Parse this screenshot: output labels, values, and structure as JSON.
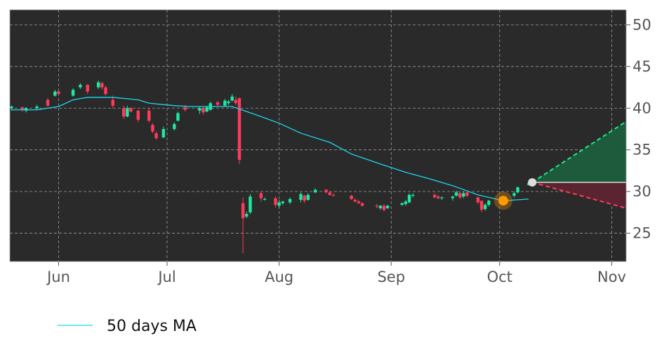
{
  "chart_data": {
    "type": "candlestick",
    "x": [
      -13,
      -10,
      -9,
      -6,
      -3,
      -1,
      0,
      4,
      6,
      8,
      11,
      12,
      13,
      15,
      18,
      19,
      20,
      22,
      25,
      26,
      27,
      29,
      32,
      33,
      35,
      39,
      40,
      41,
      42,
      44,
      46,
      47,
      48,
      49,
      50,
      51,
      52,
      53,
      56,
      57,
      60,
      61,
      62,
      64,
      67,
      68,
      69,
      71,
      74,
      75,
      76,
      81,
      82,
      83,
      84,
      88,
      89,
      90,
      91,
      95,
      96,
      97,
      98,
      104,
      105,
      106,
      109,
      110,
      111,
      112,
      113,
      116,
      117,
      118,
      119,
      123,
      124,
      126,
      127,
      130
    ],
    "open": [
      40.0,
      40.1,
      39.7,
      40.0,
      41.0,
      41.5,
      42.0,
      41.5,
      42.5,
      42.8,
      42.5,
      43.0,
      42.5,
      41.0,
      40.0,
      39.0,
      40.0,
      39.7,
      39.7,
      38.0,
      37.0,
      36.5,
      37.5,
      38.5,
      40.1,
      39.7,
      40.0,
      39.6,
      39.8,
      40.7,
      40.3,
      40.6,
      40.9,
      41.0,
      41.2,
      28.6,
      27.0,
      27.5,
      29.8,
      29.0,
      29.2,
      28.3,
      28.6,
      28.7,
      29.0,
      29.5,
      29.0,
      29.9,
      30.2,
      29.9,
      29.6,
      29.5,
      29.0,
      28.8,
      28.6,
      28.3,
      28.0,
      28.3,
      28.0,
      28.4,
      28.5,
      28.7,
      29.5,
      29.6,
      29.4,
      29.2,
      29.2,
      29.5,
      29.8,
      29.4,
      29.9,
      29.3,
      28.9,
      27.9,
      28.4,
      28.6,
      28.8,
      29.5,
      29.9,
      30.8
    ],
    "high": [
      40.3,
      40.2,
      40.1,
      40.4,
      41.2,
      42.2,
      42.1,
      42.4,
      43.0,
      42.9,
      43.3,
      43.2,
      42.7,
      41.5,
      40.3,
      40.3,
      40.1,
      39.8,
      40.0,
      38.2,
      37.2,
      37.8,
      38.3,
      39.6,
      40.4,
      40.2,
      40.1,
      40.3,
      40.8,
      40.9,
      41.1,
      41.0,
      41.7,
      41.4,
      41.3,
      29.3,
      27.6,
      29.7,
      30.0,
      29.3,
      29.4,
      29.0,
      28.9,
      29.3,
      29.9,
      29.6,
      29.8,
      30.4,
      30.3,
      30.1,
      29.8,
      29.6,
      29.2,
      29.0,
      28.7,
      28.5,
      28.4,
      28.5,
      28.4,
      28.7,
      29.0,
      29.8,
      29.8,
      29.8,
      29.6,
      29.4,
      29.5,
      30.1,
      30.0,
      30.0,
      30.0,
      29.4,
      28.9,
      28.6,
      29.0,
      29.1,
      29.0,
      30.0,
      30.6,
      31.1
    ],
    "low": [
      39.7,
      39.6,
      39.5,
      39.8,
      40.2,
      41.4,
      41.5,
      41.4,
      42.3,
      41.7,
      42.3,
      42.2,
      41.5,
      40.0,
      38.7,
      38.9,
      39.5,
      38.3,
      38.3,
      37.0,
      36.2,
      36.4,
      37.3,
      38.4,
      39.6,
      39.3,
      39.2,
      39.5,
      39.7,
      40.3,
      40.2,
      40.4,
      40.8,
      40.4,
      33.3,
      22.6,
      26.8,
      27.3,
      28.8,
      28.9,
      28.1,
      28.0,
      28.4,
      28.5,
      28.7,
      28.6,
      28.9,
      29.8,
      29.8,
      29.5,
      29.4,
      29.0,
      28.7,
      28.5,
      28.2,
      28.0,
      27.8,
      27.6,
      27.9,
      28.3,
      28.3,
      28.6,
      29.3,
      29.2,
      29.1,
      29.0,
      28.9,
      29.4,
      29.1,
      29.2,
      29.3,
      28.5,
      27.5,
      27.7,
      28.2,
      28.5,
      28.5,
      29.3,
      29.8,
      30.7
    ],
    "close": [
      40.2,
      39.8,
      40.0,
      40.2,
      40.3,
      42.0,
      41.7,
      42.2,
      42.8,
      42.0,
      43.1,
      42.5,
      41.7,
      40.3,
      39.0,
      40.0,
      39.6,
      38.6,
      38.5,
      37.2,
      36.4,
      37.5,
      38.1,
      39.4,
      39.8,
      40.0,
      39.5,
      40.1,
      40.6,
      40.4,
      40.9,
      40.8,
      41.4,
      40.6,
      33.8,
      26.8,
      27.3,
      29.4,
      29.2,
      29.1,
      28.4,
      28.7,
      28.8,
      29.1,
      29.7,
      28.9,
      29.6,
      30.2,
      29.9,
      29.6,
      29.5,
      29.1,
      28.8,
      28.6,
      28.3,
      28.2,
      28.3,
      27.8,
      28.3,
      28.6,
      28.8,
      29.6,
      29.6,
      29.3,
      29.2,
      29.3,
      29.4,
      29.9,
      29.3,
      29.8,
      29.5,
      28.7,
      27.8,
      28.4,
      28.9,
      28.9,
      28.7,
      29.8,
      30.5,
      31.0
    ],
    "up_color": "#1de9a0",
    "down_color": "#ff3b5c",
    "ma": {
      "name": "50 days MA",
      "color": "#1ad8f0",
      "x": [
        -13,
        -6,
        0,
        4,
        8,
        15,
        22,
        25,
        32,
        36,
        48,
        54,
        61,
        67,
        75,
        81,
        89,
        96,
        102,
        109,
        116,
        123,
        130
      ],
      "values": [
        39.8,
        39.8,
        40.2,
        41.0,
        41.3,
        41.3,
        41.0,
        40.6,
        40.3,
        40.2,
        40.2,
        39.3,
        38.2,
        37.0,
        35.9,
        34.5,
        33.3,
        32.3,
        31.6,
        30.7,
        29.6,
        28.9,
        29.1
      ]
    },
    "marker": {
      "x": 123,
      "y": 28.9,
      "color": "#ff9a00"
    },
    "forecast": {
      "x": 131,
      "start": 31.1,
      "upper": 38.4,
      "lower": 28.0,
      "x_end": 157
    },
    "xlim": [
      -13.5,
      157
    ],
    "ylim": [
      21.6,
      51.8
    ],
    "xticks": [
      {
        "value": 0,
        "label": "Jun"
      },
      {
        "value": 30,
        "label": "Jul"
      },
      {
        "value": 61,
        "label": "Aug"
      },
      {
        "value": 92,
        "label": "Sep"
      },
      {
        "value": 122,
        "label": "Oct"
      },
      {
        "value": 153,
        "label": "Nov"
      }
    ],
    "yticks": [
      25,
      30,
      35,
      40,
      45,
      50
    ],
    "grid": true
  }
}
